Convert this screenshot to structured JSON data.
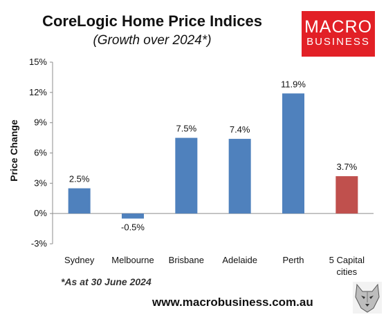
{
  "chart_data": {
    "type": "bar",
    "title": "CoreLogic Home Price Indices",
    "subtitle": "(Growth over 2024*)",
    "ylabel": "Price Change",
    "xlabel": "",
    "ylim": [
      -3,
      15
    ],
    "yticks": [
      -3,
      0,
      3,
      6,
      9,
      12,
      15
    ],
    "ytick_labels": [
      "-3%",
      "0%",
      "3%",
      "6%",
      "9%",
      "12%",
      "15%"
    ],
    "categories": [
      "Sydney",
      "Melbourne",
      "Brisbane",
      "Adelaide",
      "Perth",
      "5 Capital cities"
    ],
    "category_lines": [
      [
        "Sydney"
      ],
      [
        "Melbourne"
      ],
      [
        "Brisbane"
      ],
      [
        "Adelaide"
      ],
      [
        "Perth"
      ],
      [
        "5 Capital",
        "cities"
      ]
    ],
    "values": [
      2.5,
      -0.5,
      7.5,
      7.4,
      11.9,
      3.7
    ],
    "data_labels": [
      "2.5%",
      "-0.5%",
      "7.5%",
      "7.4%",
      "11.9%",
      "3.7%"
    ],
    "bar_colors": [
      "#4f81bd",
      "#4f81bd",
      "#4f81bd",
      "#4f81bd",
      "#4f81bd",
      "#c0504d"
    ],
    "grid": false,
    "legend": "none"
  },
  "footnote": "*As at 30 June 2024",
  "website": "www.macrobusiness.com.au",
  "logo": {
    "line1": "MACRO",
    "line2": "BUSINESS",
    "color": "#e22026"
  },
  "wolf_icon": "wolf-head-icon"
}
